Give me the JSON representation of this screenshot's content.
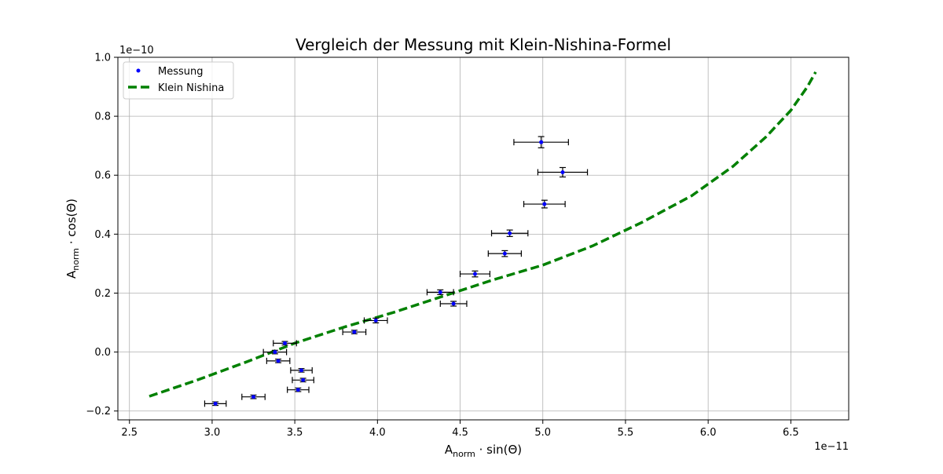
{
  "chart_data": {
    "type": "scatter",
    "title": "Vergleich der Messung mit Klein-Nishina-Formel",
    "xlabel_main": "A",
    "xlabel_sub": "norm",
    "xlabel_rest": " · sin(Θ)",
    "ylabel_main": "A",
    "ylabel_sub": "norm",
    "ylabel_rest": " · cos(Θ)",
    "x_offset_text": "1e−11",
    "y_offset_text": "1e−10",
    "xlim": [
      2.43,
      6.85
    ],
    "ylim": [
      -0.23,
      1.0
    ],
    "x_ticks": [
      2.5,
      3.0,
      3.5,
      4.0,
      4.5,
      5.0,
      5.5,
      6.0,
      6.5
    ],
    "x_tick_labels": [
      "2.5",
      "3.0",
      "3.5",
      "4.0",
      "4.5",
      "5.0",
      "5.5",
      "6.0",
      "6.5"
    ],
    "y_ticks": [
      -0.2,
      0.0,
      0.2,
      0.4,
      0.6,
      0.8,
      1.0
    ],
    "y_tick_labels": [
      "−0.2",
      "0.0",
      "0.2",
      "0.4",
      "0.6",
      "0.8",
      "1.0"
    ],
    "grid": true,
    "legend_position": "top-left",
    "legend": [
      "Messung",
      "Klein Nishina"
    ],
    "colors": {
      "points": "#0000ff",
      "errorbars": "#000000",
      "curve": "#008000",
      "grid": "#b0b0b0"
    },
    "series": [
      {
        "name": "Messung",
        "kind": "scatter-errorbar",
        "points": [
          {
            "x": 3.02,
            "y": -0.175,
            "xerr": 0.065,
            "yerr": 0.006
          },
          {
            "x": 3.25,
            "y": -0.152,
            "xerr": 0.07,
            "yerr": 0.006
          },
          {
            "x": 3.38,
            "y": 0.0,
            "xerr": 0.07,
            "yerr": 0.006
          },
          {
            "x": 3.4,
            "y": -0.03,
            "xerr": 0.07,
            "yerr": 0.006
          },
          {
            "x": 3.44,
            "y": 0.03,
            "xerr": 0.07,
            "yerr": 0.006
          },
          {
            "x": 3.52,
            "y": -0.128,
            "xerr": 0.065,
            "yerr": 0.006
          },
          {
            "x": 3.54,
            "y": -0.062,
            "xerr": 0.065,
            "yerr": 0.006
          },
          {
            "x": 3.55,
            "y": -0.095,
            "xerr": 0.065,
            "yerr": 0.006
          },
          {
            "x": 3.86,
            "y": 0.068,
            "xerr": 0.07,
            "yerr": 0.006
          },
          {
            "x": 3.99,
            "y": 0.107,
            "xerr": 0.07,
            "yerr": 0.008
          },
          {
            "x": 4.38,
            "y": 0.203,
            "xerr": 0.08,
            "yerr": 0.008
          },
          {
            "x": 4.46,
            "y": 0.164,
            "xerr": 0.08,
            "yerr": 0.008
          },
          {
            "x": 4.59,
            "y": 0.265,
            "xerr": 0.09,
            "yerr": 0.01
          },
          {
            "x": 4.77,
            "y": 0.334,
            "xerr": 0.1,
            "yerr": 0.01
          },
          {
            "x": 4.8,
            "y": 0.403,
            "xerr": 0.11,
            "yerr": 0.011
          },
          {
            "x": 5.01,
            "y": 0.502,
            "xerr": 0.125,
            "yerr": 0.013
          },
          {
            "x": 4.99,
            "y": 0.712,
            "xerr": 0.165,
            "yerr": 0.019
          },
          {
            "x": 5.12,
            "y": 0.61,
            "xerr": 0.15,
            "yerr": 0.016
          }
        ]
      },
      {
        "name": "Klein Nishina",
        "kind": "line-dashed",
        "x": [
          2.62,
          2.9,
          3.2,
          3.5,
          3.8,
          4.1,
          4.4,
          4.7,
          5.0,
          5.3,
          5.6,
          5.9,
          6.15,
          6.35,
          6.5,
          6.6,
          6.65
        ],
        "y": [
          -0.15,
          -0.097,
          -0.035,
          0.03,
          0.085,
          0.135,
          0.19,
          0.245,
          0.295,
          0.36,
          0.44,
          0.53,
          0.63,
          0.73,
          0.82,
          0.9,
          0.95
        ]
      }
    ]
  }
}
